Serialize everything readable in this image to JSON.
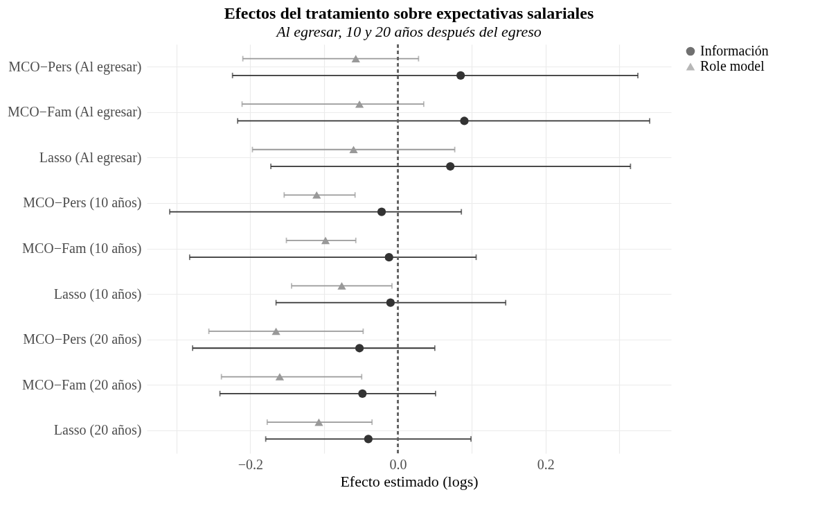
{
  "chart_data": {
    "type": "scatter",
    "title": "Efectos del tratamiento sobre expectativas salariales",
    "subtitle": "Al egresar, 10 y 20 años después del egreso",
    "xlabel": "Efecto estimado (logs)",
    "categories": [
      "MCO−Pers (Al egresar)",
      "MCO−Fam (Al egresar)",
      "Lasso (Al egresar)",
      "MCO−Pers (10 años)",
      "MCO−Fam (10 años)",
      "Lasso (10 años)",
      "MCO−Pers (20 años)",
      "MCO−Fam (20 años)",
      "Lasso (20 años)"
    ],
    "orientation": "horizontal",
    "series": [
      {
        "name": "Información",
        "color": "#333333",
        "marker": "circle",
        "values": [
          0.085,
          0.09,
          0.071,
          -0.022,
          -0.012,
          -0.01,
          -0.052,
          -0.048,
          -0.04
        ],
        "errors": [
          [
            -0.224,
            0.325
          ],
          [
            -0.217,
            0.341
          ],
          [
            -0.172,
            0.315
          ],
          [
            -0.309,
            0.086
          ],
          [
            -0.282,
            0.106
          ],
          [
            -0.165,
            0.146
          ],
          [
            -0.278,
            0.05
          ],
          [
            -0.241,
            0.051
          ],
          [
            -0.179,
            0.099
          ]
        ]
      },
      {
        "name": "Role model",
        "color": "#999999",
        "marker": "triangle",
        "values": [
          -0.057,
          -0.052,
          -0.06,
          -0.11,
          -0.098,
          -0.076,
          -0.165,
          -0.16,
          -0.107
        ],
        "errors": [
          [
            -0.21,
            0.028
          ],
          [
            -0.211,
            0.035
          ],
          [
            -0.197,
            0.077
          ],
          [
            -0.154,
            -0.058
          ],
          [
            -0.151,
            -0.057
          ],
          [
            -0.144,
            -0.008
          ],
          [
            -0.256,
            -0.047
          ],
          [
            -0.239,
            -0.049
          ],
          [
            -0.177,
            -0.035
          ]
        ]
      }
    ],
    "xlim": [
      -0.34,
      0.37
    ],
    "xticks": [
      {
        "value": -0.3,
        "label": null
      },
      {
        "value": -0.2,
        "label": "−0.2"
      },
      {
        "value": -0.1,
        "label": null
      },
      {
        "value": 0.0,
        "label": "0.0"
      },
      {
        "value": 0.1,
        "label": null
      },
      {
        "value": 0.2,
        "label": "0.2"
      },
      {
        "value": 0.3,
        "label": null
      }
    ],
    "ref_lines": [
      {
        "axis": "x",
        "value": 0,
        "color": "#666666",
        "line_style": "dashed"
      }
    ],
    "grid": true,
    "legend": "right"
  }
}
